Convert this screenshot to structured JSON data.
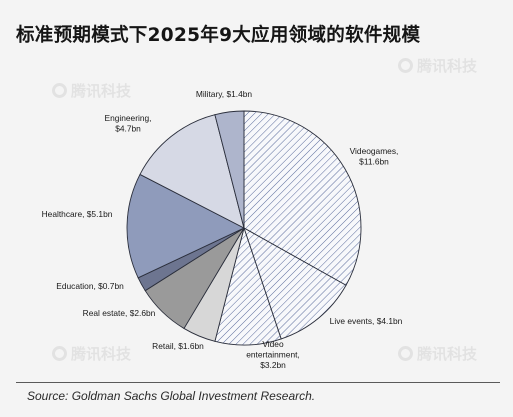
{
  "chart_data": {
    "type": "pie",
    "title": "标准预期模式下2025年9大应用领域的软件规模",
    "slices": [
      {
        "name": "Videogames",
        "value": 11.6,
        "label": [
          "Videogames,",
          "$11.6bn"
        ],
        "fill": "hatch",
        "color": "#5b6c9c"
      },
      {
        "name": "Live events",
        "value": 4.1,
        "label": [
          "Live events, $4.1bn"
        ],
        "fill": "hatch",
        "color": "#5b6c9c"
      },
      {
        "name": "Video entertainment",
        "value": 3.2,
        "label": [
          "Video",
          "entertainment,",
          "$3.2bn"
        ],
        "fill": "hatch",
        "color": "#5b6c9c"
      },
      {
        "name": "Retail",
        "value": 1.6,
        "label": [
          "Retail, $1.6bn"
        ],
        "fill": "solid",
        "color": "#d7d7d7"
      },
      {
        "name": "Real estate",
        "value": 2.6,
        "label": [
          "Real estate, $2.6bn"
        ],
        "fill": "solid",
        "color": "#9a9a9a"
      },
      {
        "name": "Education",
        "value": 0.7,
        "label": [
          "Education, $0.7bn"
        ],
        "fill": "solid",
        "color": "#6d7590"
      },
      {
        "name": "Healthcare",
        "value": 5.1,
        "label": [
          "Healthcare, $5.1bn"
        ],
        "fill": "solid",
        "color": "#8f9bbb"
      },
      {
        "name": "Engineering",
        "value": 4.7,
        "label": [
          "Engineering,",
          "$4.7bn"
        ],
        "fill": "solid",
        "color": "#d6d9e5"
      },
      {
        "name": "Military",
        "value": 1.4,
        "label": [
          "Military, $1.4bn"
        ],
        "fill": "solid",
        "color": "#aeb5cc"
      }
    ],
    "start_direction": "12 o'clock",
    "direction": "clockwise"
  },
  "source": "Source: Goldman Sachs Global Investment Research.",
  "watermark": "腾讯科技"
}
